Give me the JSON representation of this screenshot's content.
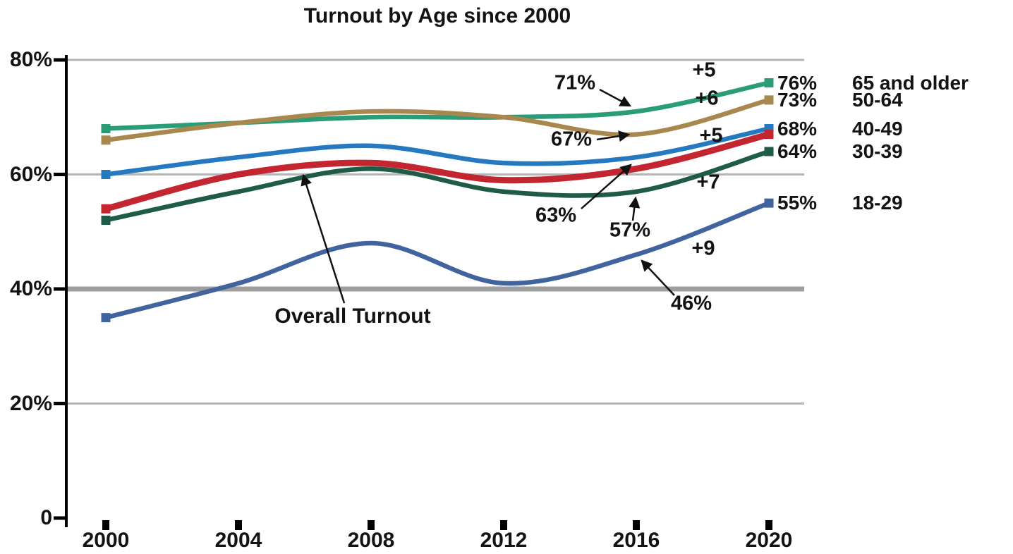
{
  "chart_data": {
    "type": "line",
    "title": "Turnout by Age since 2000",
    "xlabel": "",
    "ylabel": "",
    "x": [
      2000,
      2004,
      2008,
      2012,
      2016,
      2020
    ],
    "x_tick_labels": [
      "2000",
      "2004",
      "2008",
      "2012",
      "2016",
      "2020"
    ],
    "y_ticks": [
      80,
      60,
      40,
      20,
      0
    ],
    "y_tick_labels": [
      "80%",
      "60%",
      "40%",
      "20%",
      "0"
    ],
    "ylim": [
      0,
      84
    ],
    "grid": "horizontal",
    "legend_position": "right-end-labels",
    "colors": {
      "grid": "#b5b5b5",
      "grid_emphasis": "#9e9e9e",
      "axis": "#000000",
      "text": "#131313"
    },
    "series": [
      {
        "name": "65 and older",
        "color": "#2a9c78",
        "values": [
          68,
          69,
          70,
          70,
          71,
          76
        ],
        "end_value_label": "76%",
        "end_name_label": "65 and older"
      },
      {
        "name": "50-64",
        "color": "#a8884e",
        "values": [
          66,
          69,
          71,
          70,
          67,
          73
        ],
        "end_value_label": "73%",
        "end_name_label": "50-64"
      },
      {
        "name": "40-49",
        "color": "#2579c1",
        "values": [
          60,
          63,
          65,
          62,
          63,
          68
        ],
        "end_value_label": "68%",
        "end_name_label": "40-49"
      },
      {
        "name": "Overall Turnout",
        "color": "#c32631",
        "values": [
          54,
          60,
          62,
          59,
          61,
          67
        ],
        "thick": true
      },
      {
        "name": "30-39",
        "color": "#1e5c45",
        "values": [
          52,
          57,
          61,
          57,
          57,
          64
        ],
        "end_value_label": "64%",
        "end_name_label": "30-39"
      },
      {
        "name": "18-29",
        "color": "#41639e",
        "values": [
          35,
          41,
          48,
          41,
          46,
          55
        ],
        "end_value_label": "55%",
        "end_name_label": "18-29"
      }
    ],
    "annotations": [
      {
        "id": "green-2016",
        "text": "71%"
      },
      {
        "id": "green-change",
        "text": "+5"
      },
      {
        "id": "tan-2016",
        "text": "67%"
      },
      {
        "id": "tan-change",
        "text": "+6"
      },
      {
        "id": "blue-2016",
        "text": "63%"
      },
      {
        "id": "blue-change",
        "text": "+5"
      },
      {
        "id": "dkgreen-2016",
        "text": "57%"
      },
      {
        "id": "dkgreen-change",
        "text": "+7"
      },
      {
        "id": "navy-2016",
        "text": "46%"
      },
      {
        "id": "navy-change",
        "text": "+9"
      },
      {
        "id": "overall-label",
        "text": "Overall Turnout"
      }
    ]
  }
}
